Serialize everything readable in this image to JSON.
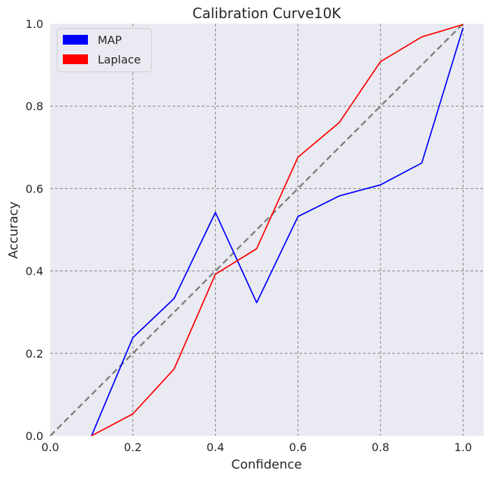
{
  "chart_data": {
    "type": "line",
    "title": "Calibration Curve10K",
    "xlabel": "Confidence",
    "ylabel": "Accuracy",
    "xlim": [
      0.0,
      1.05
    ],
    "ylim": [
      0.0,
      1.0
    ],
    "xticks": [
      0.0,
      0.2,
      0.4,
      0.6,
      0.8,
      1.0
    ],
    "xtick_labels": [
      "0.0",
      "0.2",
      "0.4",
      "0.6",
      "0.8",
      "1.0"
    ],
    "yticks": [
      0.0,
      0.2,
      0.4,
      0.6,
      0.8,
      1.0
    ],
    "ytick_labels": [
      "0.0",
      "0.2",
      "0.4",
      "0.6",
      "0.8",
      "1.0"
    ],
    "grid": true,
    "legend_position": "top-left",
    "background_color": "#eaeaf2",
    "grid_color": "#808080",
    "reference_line": {
      "x": [
        0.0,
        1.0
      ],
      "y": [
        0.0,
        1.0
      ],
      "color": "#808080",
      "style": "dashed"
    },
    "series": [
      {
        "name": "MAP",
        "color": "#0000ff",
        "x": [
          0.1,
          0.2,
          0.3,
          0.4,
          0.5,
          0.6,
          0.7,
          0.8,
          0.9,
          1.0
        ],
        "y": [
          0.0,
          0.238,
          0.333,
          0.542,
          0.323,
          0.532,
          0.582,
          0.609,
          0.662,
          0.99
        ]
      },
      {
        "name": "Laplace",
        "color": "#ff0000",
        "x": [
          0.1,
          0.2,
          0.3,
          0.4,
          0.5,
          0.6,
          0.7,
          0.8,
          0.9,
          1.0
        ],
        "y": [
          0.0,
          0.053,
          0.162,
          0.392,
          0.454,
          0.676,
          0.76,
          0.908,
          0.968,
          0.998
        ]
      }
    ]
  }
}
